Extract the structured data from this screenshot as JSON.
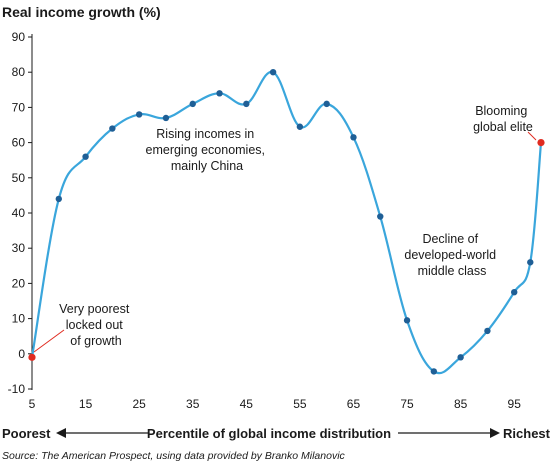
{
  "chart_data": {
    "type": "line",
    "title": "Real income growth (%)",
    "xlabel": "Percentile of global income distribution",
    "x_left_label": "Poorest",
    "x_right_label": "Richest",
    "source": "Source: The American Prospect, using data provided by Branko Milanovic",
    "xlim": [
      5,
      100
    ],
    "ylim": [
      -10,
      90
    ],
    "x_ticks": [
      5,
      15,
      25,
      35,
      45,
      55,
      65,
      75,
      85,
      95
    ],
    "y_ticks": [
      -10,
      0,
      10,
      20,
      30,
      40,
      50,
      60,
      70,
      80,
      90
    ],
    "grid": false,
    "line_color": "#3aa6dc",
    "marker_color": "#1f5f96",
    "highlight_color": "#e02b20",
    "series": [
      {
        "x": [
          5,
          10,
          15,
          20,
          25,
          30,
          35,
          40,
          45,
          50,
          55,
          60,
          65,
          70,
          75,
          80,
          85,
          90,
          95,
          98,
          100
        ],
        "y": [
          -1,
          44,
          56,
          64,
          68,
          67,
          71,
          74,
          71,
          80,
          64.5,
          71,
          61.5,
          39,
          9.5,
          -5,
          -1,
          6.5,
          17.5,
          26,
          60
        ],
        "highlight_indices": [
          0,
          20
        ]
      }
    ],
    "annotations": [
      {
        "lines": [
          "Very poorest",
          "locked out",
          "of growth"
        ]
      },
      {
        "lines": [
          "Rising incomes in",
          "emerging economies,",
          "mainly China"
        ]
      },
      {
        "lines": [
          "Decline of",
          "developed-world",
          "middle class"
        ]
      },
      {
        "lines": [
          "Blooming",
          "global elite"
        ]
      }
    ]
  }
}
